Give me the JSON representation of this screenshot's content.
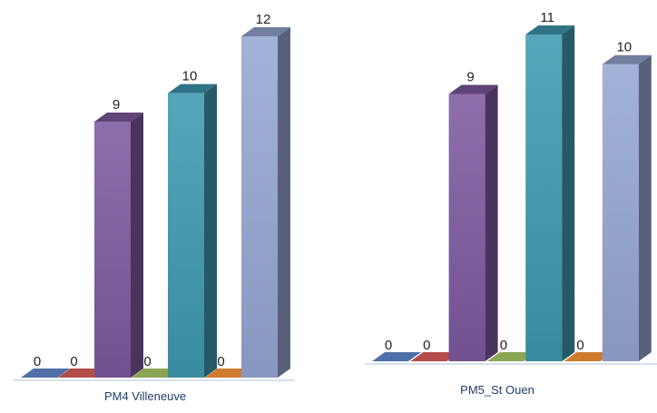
{
  "chart_data": [
    {
      "type": "bar",
      "category_label": "PM4  Villeneuve",
      "values": [
        0,
        0,
        9,
        0,
        10,
        0,
        12
      ],
      "colors": [
        "#4f6fa8",
        "#b34d4a",
        "#7f5aa0",
        "#8aa554",
        "#3f9ab1",
        "#d07a2d",
        "#97a8d4"
      ],
      "ylim": [
        0,
        12
      ],
      "legend": "none",
      "grid": false
    },
    {
      "type": "bar",
      "category_label": "PM5_St Ouen",
      "values": [
        0,
        0,
        9,
        0,
        11,
        0,
        10
      ],
      "colors": [
        "#4f6fa8",
        "#b34d4a",
        "#7f5aa0",
        "#8aa554",
        "#3f9ab1",
        "#d07a2d",
        "#97a8d4"
      ],
      "ylim": [
        0,
        11
      ],
      "legend": "none",
      "grid": false
    }
  ]
}
